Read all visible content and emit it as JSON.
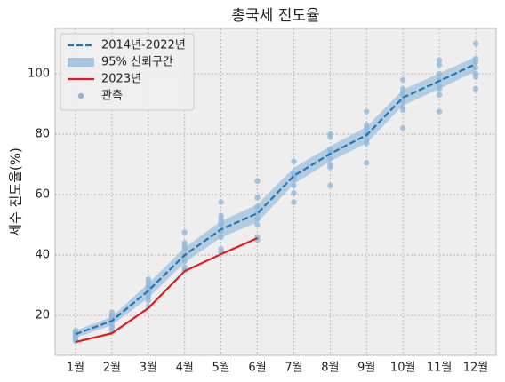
{
  "chart_data": {
    "type": "line",
    "title": "총국세 진도율",
    "ylabel": "세수 진도율(%)",
    "categories": [
      "1월",
      "2월",
      "3월",
      "4월",
      "5월",
      "6월",
      "7월",
      "8월",
      "9월",
      "10월",
      "11월",
      "12월"
    ],
    "series": [
      {
        "name": "2014년-2022년",
        "color": "#1f77b4",
        "dashed": true,
        "values": [
          13.8,
          18.2,
          28.2,
          40,
          48.5,
          53.8,
          66.2,
          73.5,
          79.7,
          92.1,
          97.6,
          103.2
        ]
      },
      {
        "name": "2023년",
        "color": "#e41a1c",
        "dashed": false,
        "values": [
          11.2,
          14.1,
          22.4,
          34.7,
          40.3,
          45.6,
          null,
          null,
          null,
          null,
          null,
          null
        ]
      }
    ],
    "band": {
      "name": "95% 신뢰구간",
      "color": "#a9c6de",
      "lower": [
        12.6,
        16.8,
        25.8,
        37.5,
        45.8,
        50.8,
        63.5,
        71,
        77,
        89.5,
        95,
        100.8
      ],
      "upper": [
        15,
        19.6,
        30.6,
        42.5,
        51.2,
        56.8,
        68.9,
        76,
        82.4,
        94.7,
        100.2,
        105.6
      ]
    },
    "observations": {
      "name": "관측",
      "color": "#8fb6d8",
      "values": [
        [
          11.5,
          12,
          12.5,
          13,
          13.5,
          13.8,
          14,
          14.5,
          15
        ],
        [
          15,
          16,
          17,
          18,
          19,
          19.5,
          20,
          21
        ],
        [
          23,
          25,
          26,
          27,
          28,
          29,
          30,
          31,
          32
        ],
        [
          35,
          36,
          38,
          40,
          42,
          43,
          44,
          47.5
        ],
        [
          41,
          42,
          46,
          48,
          50,
          51,
          52,
          53,
          57.5
        ],
        [
          45,
          46,
          50,
          52,
          54,
          56,
          59,
          64.5
        ],
        [
          57.5,
          60.5,
          63,
          65,
          66,
          67,
          71
        ],
        [
          63,
          69,
          70,
          72,
          74,
          75,
          79,
          80
        ],
        [
          70.5,
          77,
          78,
          80,
          82,
          83,
          87.5
        ],
        [
          82,
          88,
          89,
          91,
          93,
          94,
          95,
          98
        ],
        [
          87.5,
          93,
          95,
          96,
          98,
          100,
          103,
          104.5
        ],
        [
          95,
          99,
          100,
          102,
          104,
          105,
          110
        ]
      ]
    },
    "ylim": [
      6.8,
      115
    ],
    "yticks": [
      20,
      40,
      60,
      80,
      100
    ],
    "grid": true,
    "legend": "upper left"
  }
}
